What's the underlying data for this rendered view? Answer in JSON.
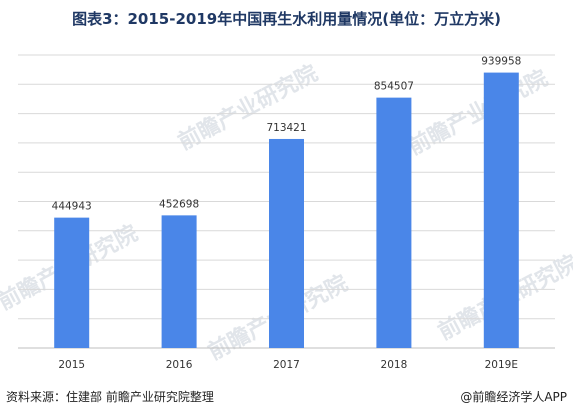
{
  "title": "图表3：2015-2019年中国再生水利用量情况(单位：万立方米)",
  "source": "资料来源：住建部 前瞻产业研究院整理",
  "brand": "@前瞻经济学人APP",
  "watermark": "前瞻产业研究院",
  "colors": {
    "bar": "#4a86e8",
    "grid": "#d9d9d9",
    "axis": "#bfbfbf",
    "title": "#1f3864"
  },
  "chart_data": {
    "type": "bar",
    "title": "图表3：2015-2019年中国再生水利用量情况(单位：万立方米)",
    "categories": [
      "2015",
      "2016",
      "2017",
      "2018",
      "2019E"
    ],
    "values": [
      444943,
      452698,
      713421,
      854507,
      939958
    ],
    "data_labels": [
      "444943",
      "452698",
      "713421",
      "854507",
      "939958"
    ],
    "ylim": [
      0,
      1000000
    ],
    "grid": true,
    "legend": "none"
  }
}
